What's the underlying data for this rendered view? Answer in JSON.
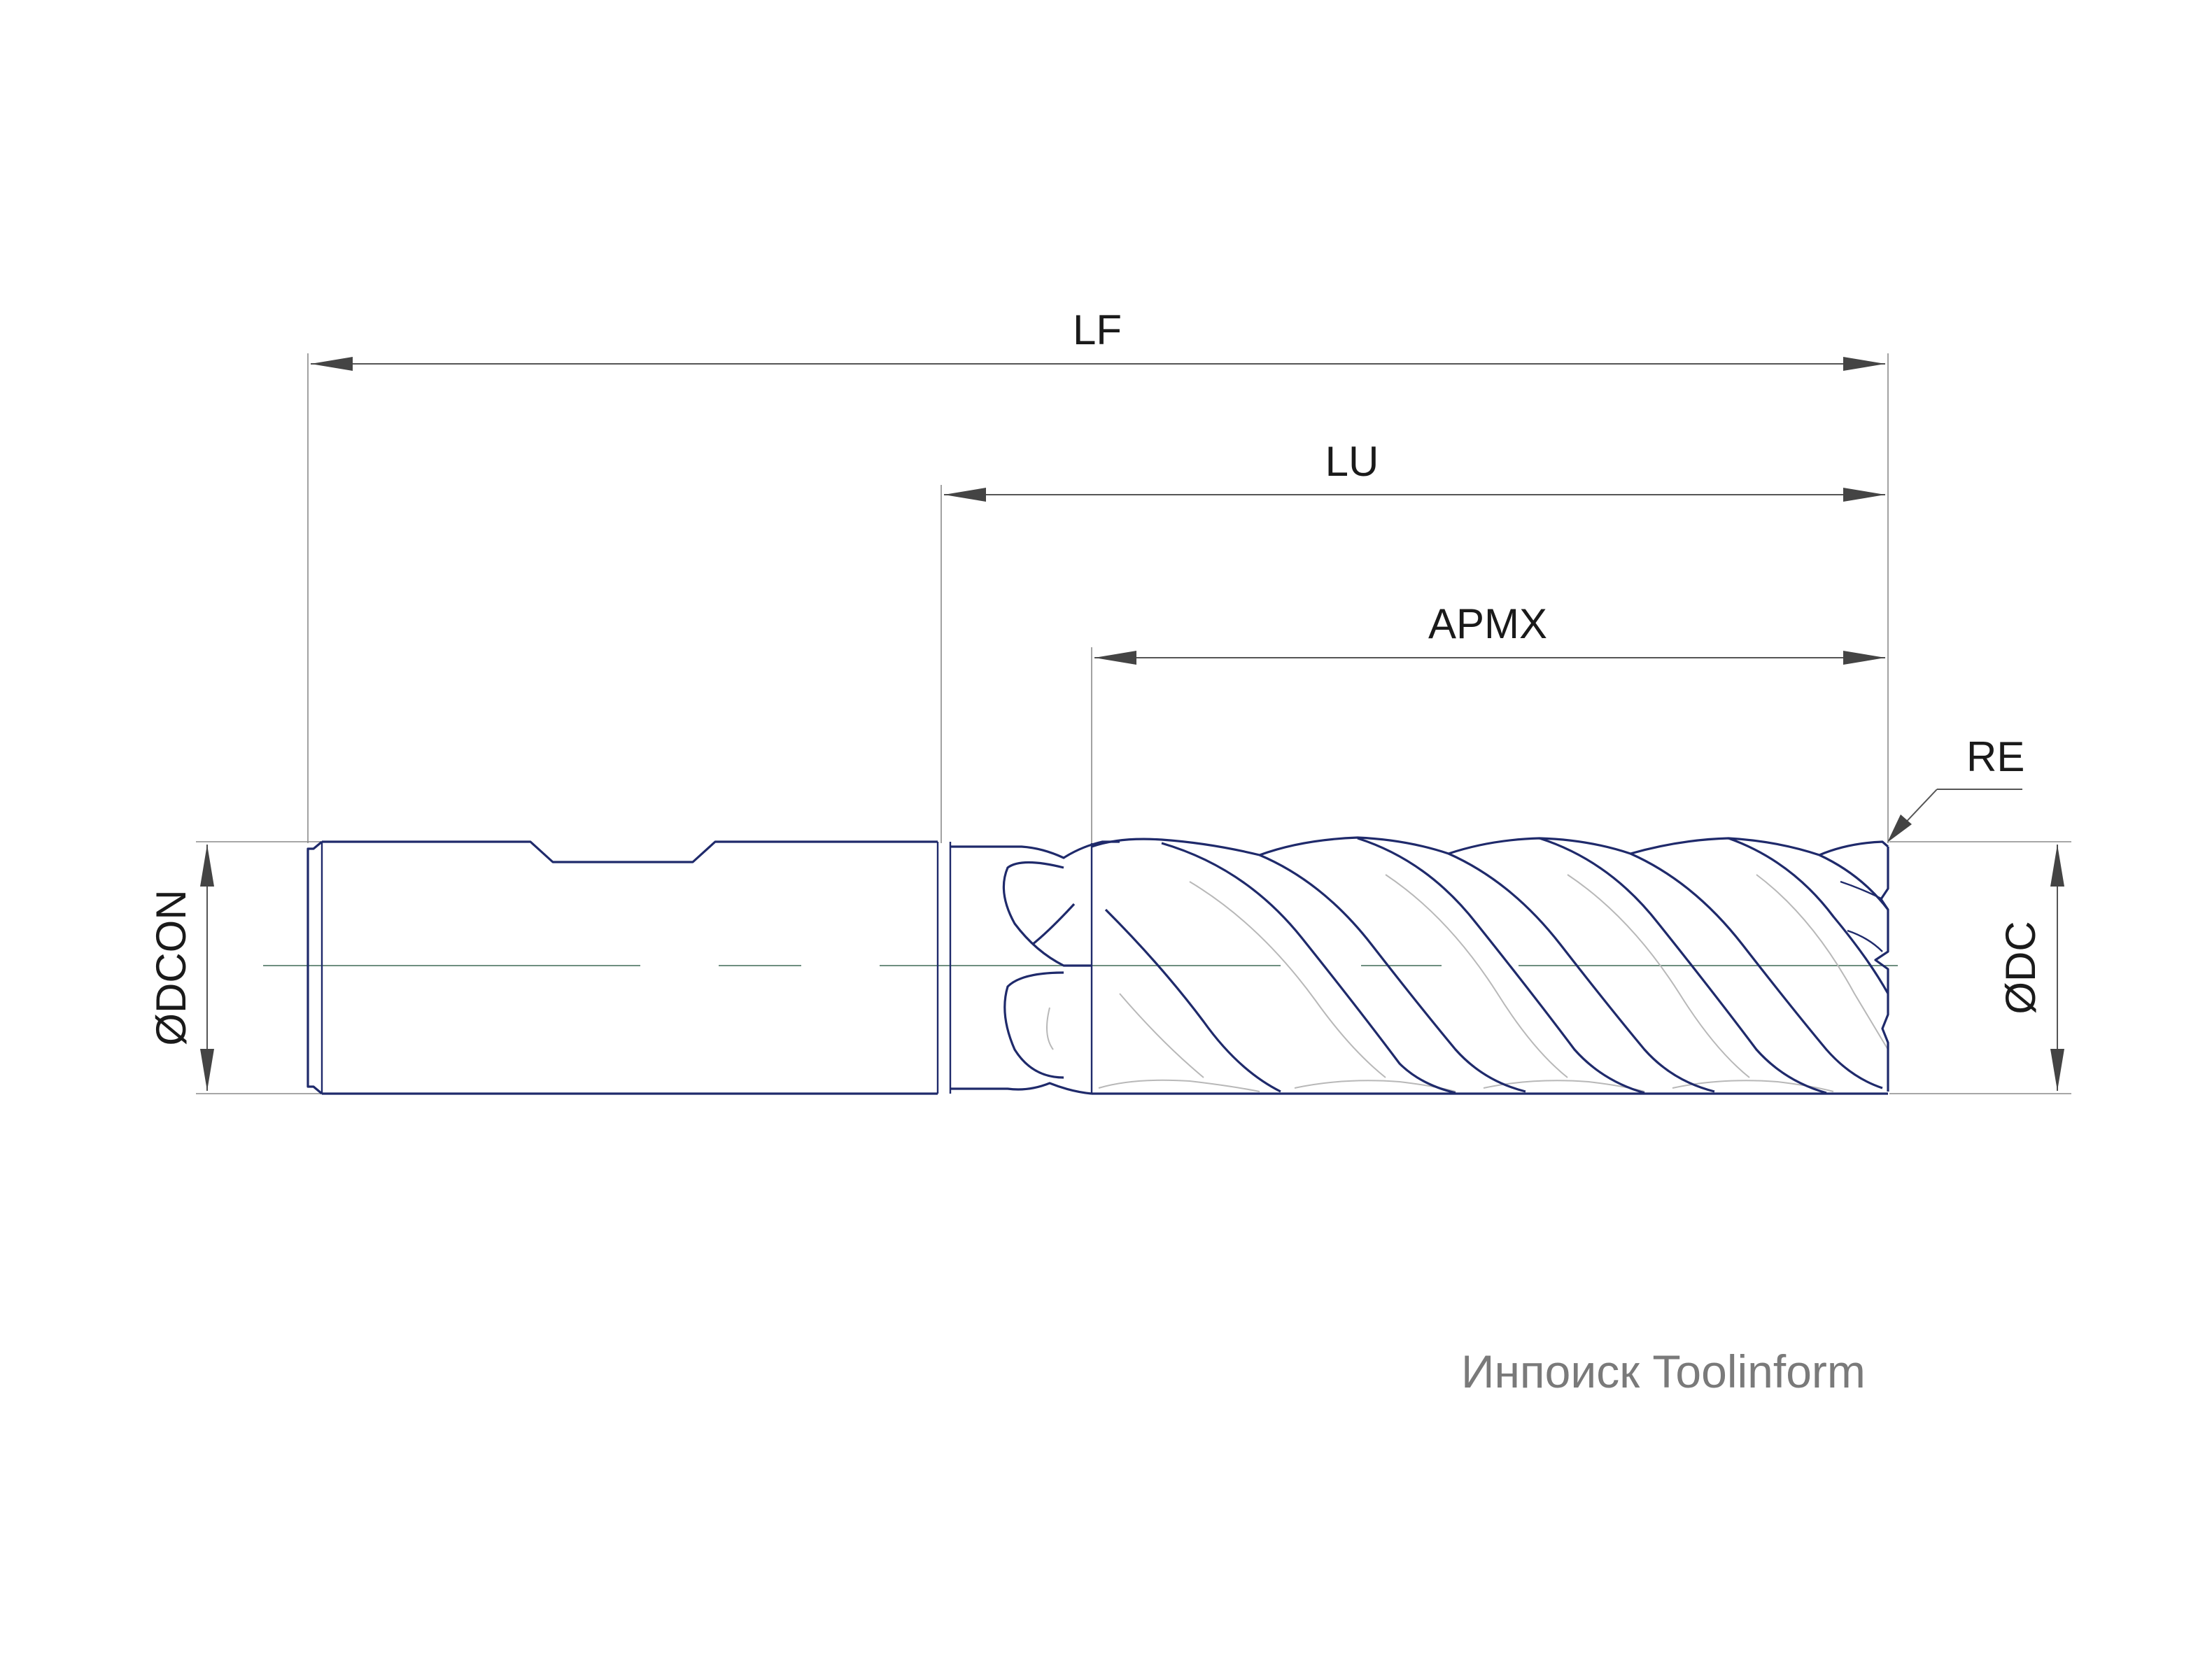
{
  "dimensions": {
    "lf": "LF",
    "lu": "LU",
    "apmx": "APMX",
    "re": "RE",
    "dcon": "ØDCON",
    "dc": "ØDC"
  },
  "watermark": "Инпоиск Toolinform",
  "colors": {
    "outline": "#1f2a6b",
    "dimension": "#555555",
    "centerline": "#6f8f80",
    "watermark": "#7a7a7a"
  }
}
